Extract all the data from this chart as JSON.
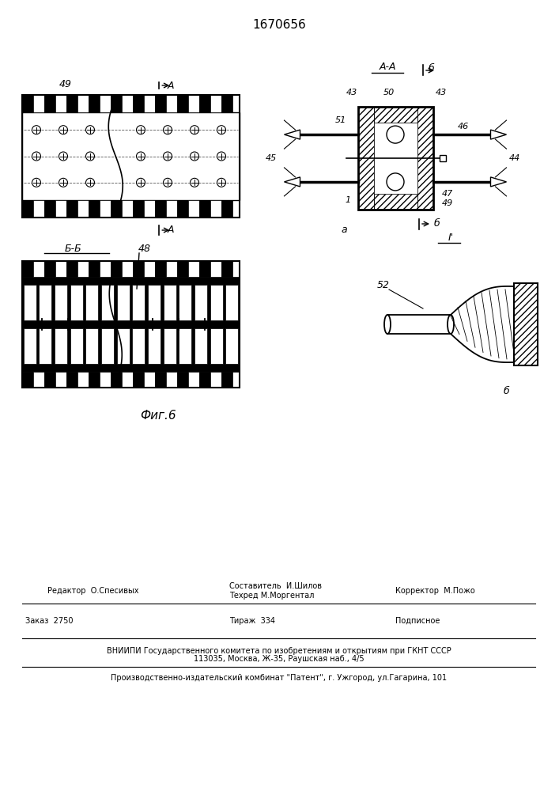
{
  "title": "1670656",
  "fig_label": "Фиг.6",
  "bg_color": "#ffffff",
  "line_color": "#000000",
  "footer": {
    "line1_left": "Редактор  О.Спесивых",
    "line1_center1": "Составитель  И.Шилов",
    "line1_center2": "Техред М.Моргентал",
    "line1_right": "Корректор  М.Пожо",
    "line2_left": "Заказ  2750",
    "line2_center": "Тираж  334",
    "line2_right": "Подписное",
    "line3": "ВНИИПИ Государственного комитета по изобретениям и открытиям при ГКНТ СССР",
    "line4": "113035, Москва, Ж-35, Раушская наб., 4/5",
    "line5": "Производственно-издательский комбинат \"Патент\", г. Ужгород, ул.Гагарина, 101"
  }
}
